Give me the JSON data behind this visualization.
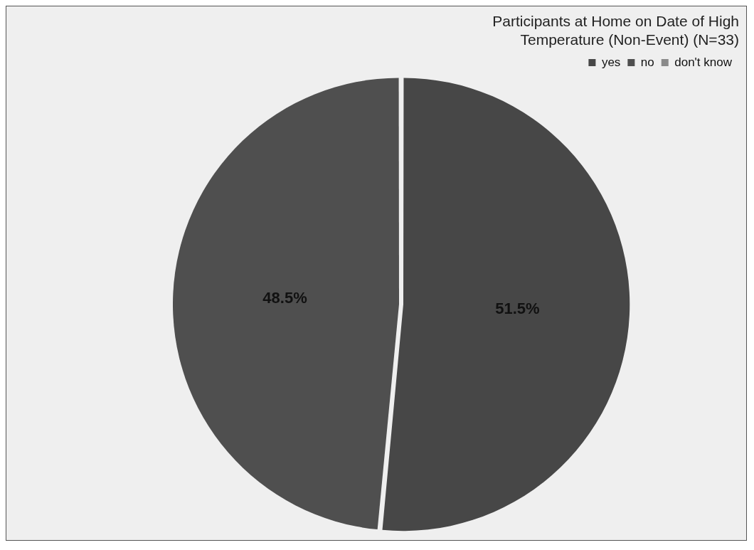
{
  "chart_data": {
    "type": "pie",
    "title": "Participants at Home on Date of High\nTemperature (Non-Event) (N=33)",
    "categories": [
      "yes",
      "no",
      "don't know"
    ],
    "values": [
      51.5,
      48.5,
      0
    ],
    "value_labels": [
      "51.5%",
      "48.5%",
      null
    ],
    "colors": [
      "#474747",
      "#4f4f4f",
      "#8a8a8a"
    ],
    "legend": "top right"
  }
}
